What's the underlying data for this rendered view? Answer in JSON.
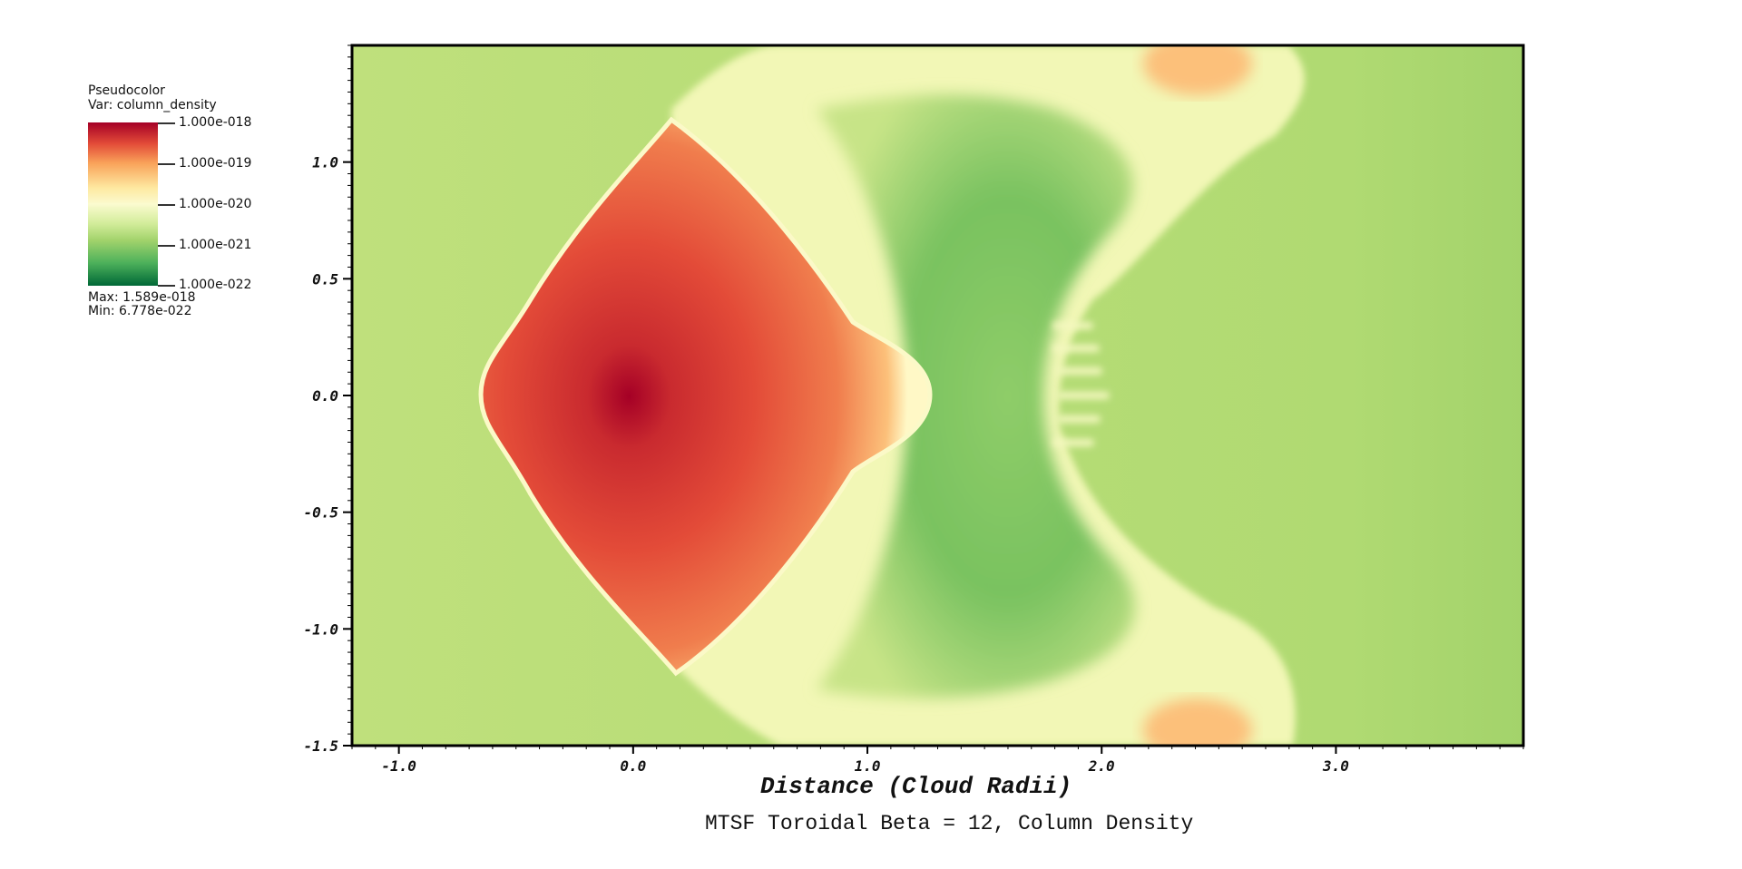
{
  "legend": {
    "plot_type": "Pseudocolor",
    "var": "Var: column_density",
    "ticks": [
      "1.000e-018",
      "1.000e-019",
      "1.000e-020",
      "1.000e-021",
      "1.000e-022"
    ],
    "max": "Max:  1.589e-018",
    "min": "Min:  6.778e-022",
    "colormap": [
      "#a50026",
      "#e34b38",
      "#f9a35a",
      "#fee8a0",
      "#fbfbcf",
      "#d2ec9a",
      "#a3d36c",
      "#4db15b",
      "#006837"
    ]
  },
  "chart_data": {
    "type": "heatmap",
    "title": "MTSF Toroidal Beta = 12, Column Density",
    "xlabel": "Distance (Cloud Radii)",
    "ylabel": "",
    "xlim": [
      -1.2,
      3.8
    ],
    "ylim": [
      -1.5,
      1.5
    ],
    "x_ticks": [
      "-1.0",
      "0.0",
      "1.0",
      "2.0",
      "3.0"
    ],
    "x_tick_values": [
      -1.0,
      0.0,
      1.0,
      2.0,
      3.0
    ],
    "y_ticks": [
      "1.0",
      "0.5",
      "0.0",
      "-0.5",
      "-1.0",
      "-1.5"
    ],
    "y_tick_values": [
      1.0,
      0.5,
      0.0,
      -0.5,
      -1.0,
      -1.5
    ],
    "colorbar_range": [
      1e-22,
      1e-18
    ],
    "colorbar_scale": "log",
    "data_max": 1.589e-18,
    "data_min": 6.778e-22,
    "background_color": "#bfe07c"
  }
}
